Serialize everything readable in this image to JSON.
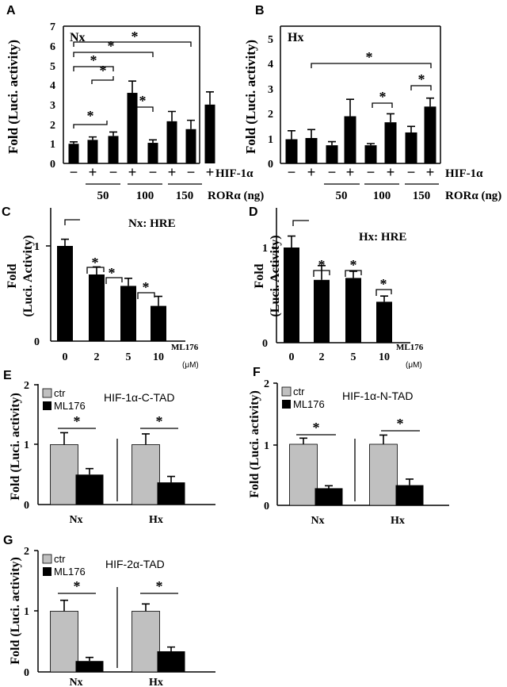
{
  "chart_data": [
    {
      "id": "A",
      "type": "bar",
      "title": "Nx",
      "ylabel": "Fold (Luci. activity)",
      "ylim": [
        0,
        7
      ],
      "yticks": [
        "0",
        "1",
        "2",
        "3",
        "4",
        "5",
        "6",
        "7"
      ],
      "values": [
        1.0,
        1.2,
        1.4,
        3.6,
        1.05,
        2.15,
        1.75,
        3.0
      ],
      "errors": [
        0.1,
        0.15,
        0.2,
        0.6,
        0.15,
        0.5,
        0.45,
        0.65
      ],
      "hif_row_label": "HIF-1α",
      "hif_signs": [
        "−",
        "+",
        "−",
        "+",
        "−",
        "+",
        "−",
        "+"
      ],
      "ror_row_label": "RORα (ng)",
      "ror_groups": [
        "50",
        "100",
        "150"
      ],
      "sig_star": "*"
    },
    {
      "id": "B",
      "type": "bar",
      "title": "Hx",
      "ylabel": "Fold (Luci. activity)",
      "ylim": [
        0,
        5.5
      ],
      "yticks": [
        "0",
        "1",
        "2",
        "3",
        "4",
        "5"
      ],
      "values": [
        1.0,
        1.05,
        0.75,
        1.95,
        0.75,
        1.7,
        1.28,
        2.35
      ],
      "errors": [
        0.35,
        0.35,
        0.15,
        0.7,
        0.07,
        0.35,
        0.25,
        0.35
      ],
      "hif_row_label": "HIF-1α",
      "hif_signs": [
        "−",
        "+",
        "−",
        "+",
        "−",
        "+",
        "−",
        "+"
      ],
      "ror_row_label": "RORα (ng)",
      "ror_groups": [
        "50",
        "100",
        "150"
      ],
      "sig_star": "*"
    },
    {
      "id": "C",
      "type": "bar",
      "title": "Nx: HRE",
      "ylabel": "Fold\n(Luci. Activity)",
      "ylim": [
        0,
        1.4
      ],
      "yticks": [
        "0",
        "1"
      ],
      "categories": [
        "0",
        "2",
        "5",
        "10"
      ],
      "values": [
        1.0,
        0.7,
        0.58,
        0.37
      ],
      "errors": [
        0.07,
        0.08,
        0.08,
        0.1
      ],
      "xlabel": "ML176",
      "xunit": "(μM)",
      "sig_star": "*"
    },
    {
      "id": "D",
      "type": "bar",
      "title": "Hx: HRE",
      "ylabel": "Fold\n(Luci. Activity)",
      "ylim": [
        0,
        1.4
      ],
      "yticks": [
        "0",
        "1"
      ],
      "categories": [
        "0",
        "2",
        "5",
        "10"
      ],
      "values": [
        1.0,
        0.66,
        0.68,
        0.43
      ],
      "errors": [
        0.12,
        0.15,
        0.07,
        0.06
      ],
      "xlabel": "ML176",
      "xunit": "(μM)",
      "sig_star": "*"
    },
    {
      "id": "E",
      "type": "bar",
      "title": "HIF-1α-C-TAD",
      "ylabel": "Fold (Luci. activity)",
      "ylim": [
        0,
        2
      ],
      "yticks": [
        "0",
        "1",
        "2"
      ],
      "categories": [
        "Nx",
        "Hx"
      ],
      "series": [
        {
          "name": "ctr",
          "color": "#c0c0c0",
          "values": [
            1.0,
            1.0
          ],
          "errors": [
            0.2,
            0.18
          ]
        },
        {
          "name": "ML176",
          "color": "#000000",
          "values": [
            0.5,
            0.37
          ],
          "errors": [
            0.1,
            0.1
          ]
        }
      ],
      "sig_star": "*"
    },
    {
      "id": "F",
      "type": "bar",
      "title": "HIF-1α-N-TAD",
      "ylabel": "Fold (Luci. activity)",
      "ylim": [
        0,
        2
      ],
      "yticks": [
        "0",
        "1",
        "2"
      ],
      "categories": [
        "Nx",
        "Hx"
      ],
      "series": [
        {
          "name": "ctr",
          "color": "#c0c0c0",
          "values": [
            1.0,
            1.0
          ],
          "errors": [
            0.1,
            0.15
          ]
        },
        {
          "name": "ML176",
          "color": "#000000",
          "values": [
            0.28,
            0.33
          ],
          "errors": [
            0.04,
            0.1
          ]
        }
      ],
      "sig_star": "*"
    },
    {
      "id": "G",
      "type": "bar",
      "title": "HIF-2α-TAD",
      "ylabel": "Fold (Luci. activity)",
      "ylim": [
        0,
        2
      ],
      "yticks": [
        "0",
        "1",
        "2"
      ],
      "categories": [
        "Nx",
        "Hx"
      ],
      "series": [
        {
          "name": "ctr",
          "color": "#c0c0c0",
          "values": [
            1.0,
            1.0
          ],
          "errors": [
            0.18,
            0.12
          ]
        },
        {
          "name": "ML176",
          "color": "#000000",
          "values": [
            0.18,
            0.34
          ],
          "errors": [
            0.06,
            0.07
          ]
        }
      ],
      "sig_star": "*"
    }
  ]
}
